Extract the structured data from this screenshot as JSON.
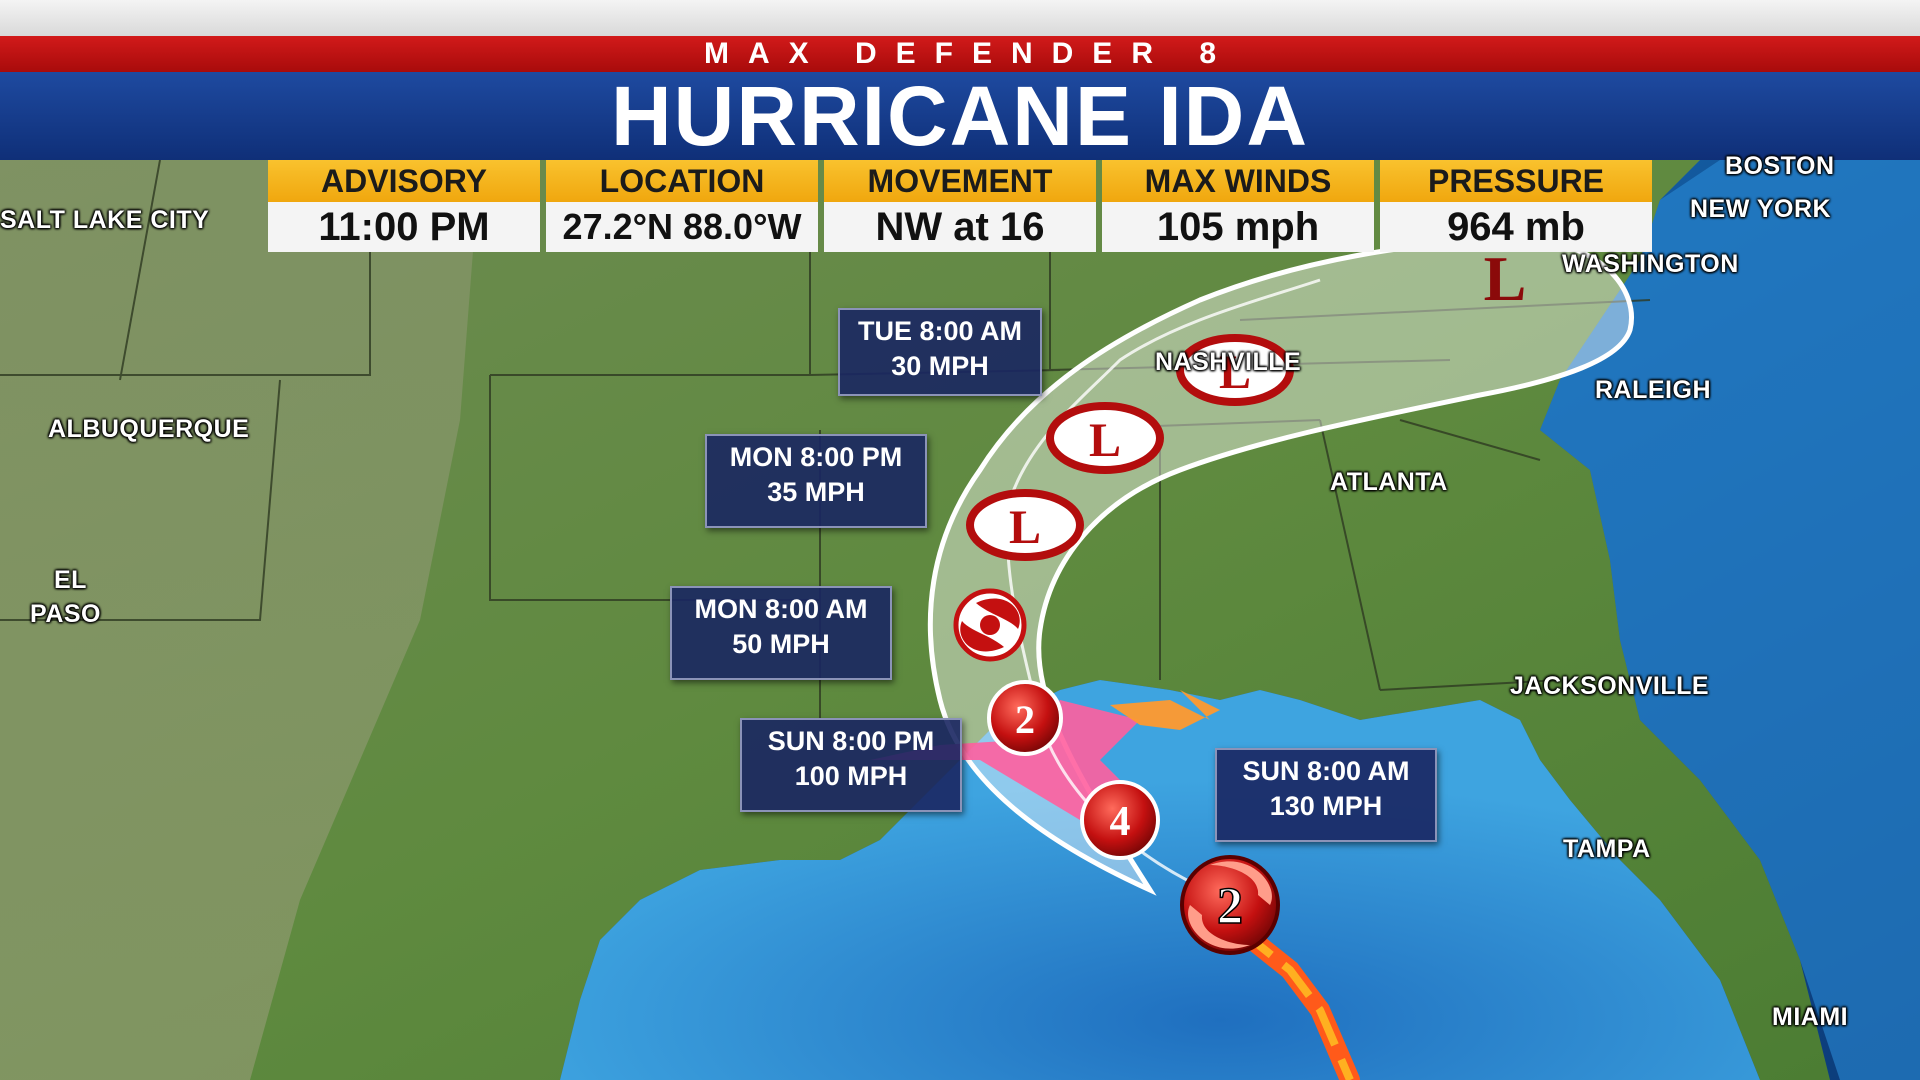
{
  "header": {
    "brand": "MAX DEFENDER 8",
    "title": "HURRICANE IDA"
  },
  "info_panel": [
    {
      "label": "ADVISORY",
      "value": "11:00 PM"
    },
    {
      "label": "LOCATION",
      "value": "27.2°N 88.0°W"
    },
    {
      "label": "MOVEMENT",
      "value": "NW at 16"
    },
    {
      "label": "MAX WINDS",
      "value": "105 mph"
    },
    {
      "label": "PRESSURE",
      "value": "964 mb"
    }
  ],
  "forecast_points": [
    {
      "time": "SUN 8:00 AM",
      "wind": "130 MPH",
      "marker": "4"
    },
    {
      "time": "SUN 8:00 PM",
      "wind": "100 MPH",
      "marker": "2"
    },
    {
      "time": "MON 8:00 AM",
      "wind": "50 MPH",
      "marker": "tropical-storm"
    },
    {
      "time": "MON 8:00 PM",
      "wind": "35 MPH",
      "marker": "L"
    },
    {
      "time": "TUE 8:00 AM",
      "wind": "30 MPH",
      "marker": "L"
    }
  ],
  "current_marker": "2",
  "cities": [
    "BOSTON",
    "NEW YORK",
    "WASHINGTON",
    "SALT LAKE CITY",
    "NASHVILLE",
    "RALEIGH",
    "ALBUQUERQUE",
    "ATLANTA",
    "EL",
    "PASO",
    "JACKSONVILLE",
    "TAMPA",
    "MIAMI"
  ],
  "colors": {
    "brand_red": "#c01212",
    "title_blue": "#1a43a0",
    "header_gold": "#f4b51e",
    "label_navy": "#1a2662",
    "cone_white": "#ffffff",
    "hurricane_red": "#b30d0d",
    "warning_pink": "#ff5f9e",
    "watch_orange": "#ff9a2e"
  }
}
